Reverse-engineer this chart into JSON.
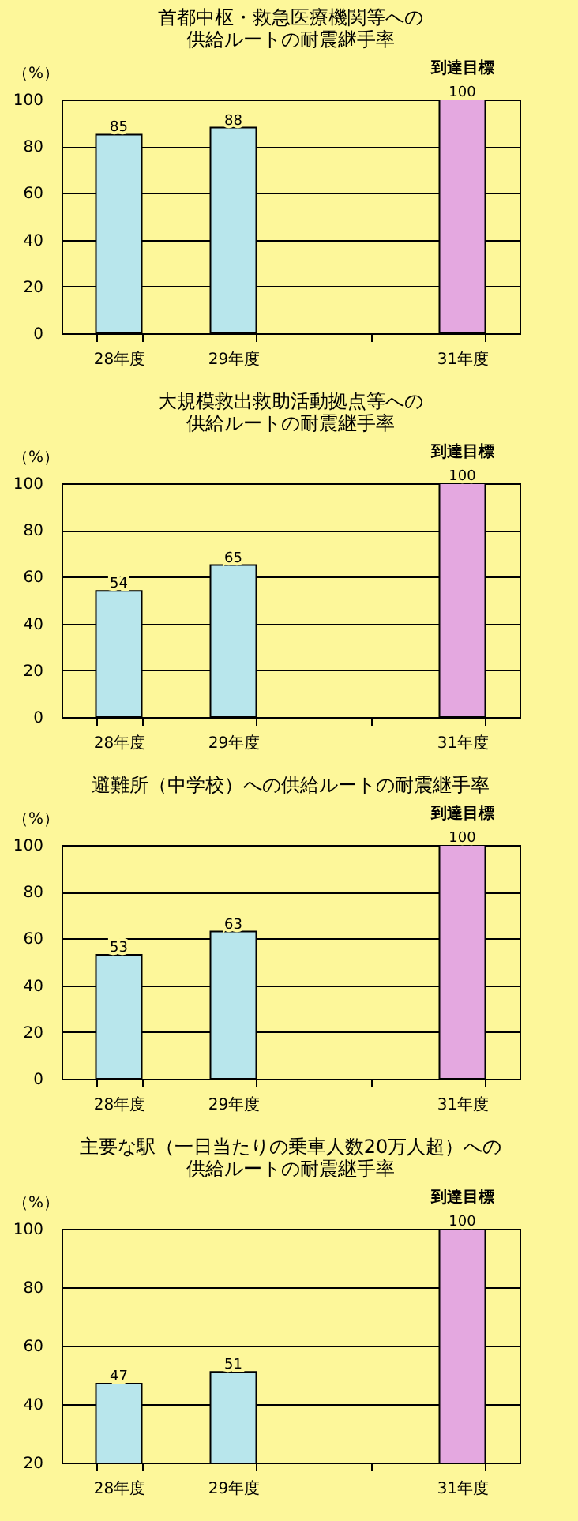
{
  "chart_data": [
    {
      "type": "bar",
      "title": "首都中枢・救急医療機関等への",
      "subtitle": "供給ルートの耐震継手率",
      "ylabel": "（%）",
      "categories": [
        "28年度",
        "29年度",
        null,
        "31年度"
      ],
      "values": [
        85,
        88,
        null,
        100
      ],
      "colors": [
        "#b8e6ec",
        "#b8e6ec",
        "#b8e6ec",
        "#e4a8e0"
      ],
      "ylim": [
        0,
        100
      ],
      "yticks": [
        0,
        20,
        40,
        60,
        80,
        100
      ],
      "grid": "y",
      "data_labels": true,
      "annotations": [
        {
          "text": "到達目標",
          "x": "31年度",
          "y": 100
        }
      ]
    },
    {
      "type": "bar",
      "title": "大規模救出救助活動拠点等への",
      "subtitle": "供給ルートの耐震継手率",
      "ylabel": "（%）",
      "categories": [
        "28年度",
        "29年度",
        null,
        "31年度"
      ],
      "values": [
        54,
        65,
        null,
        100
      ],
      "colors": [
        "#b8e6ec",
        "#b8e6ec",
        "#b8e6ec",
        "#e4a8e0"
      ],
      "ylim": [
        0,
        100
      ],
      "yticks": [
        0,
        20,
        40,
        60,
        80,
        100
      ],
      "grid": "y",
      "data_labels": true,
      "annotations": [
        {
          "text": "到達目標",
          "x": "31年度",
          "y": 100
        }
      ]
    },
    {
      "type": "bar",
      "title": "避難所（中学校）への供給ルートの耐震継手率",
      "ylabel": "（%）",
      "categories": [
        "28年度",
        "29年度",
        null,
        "31年度"
      ],
      "values": [
        53,
        63,
        null,
        100
      ],
      "colors": [
        "#b8e6ec",
        "#b8e6ec",
        "#b8e6ec",
        "#e4a8e0"
      ],
      "ylim": [
        0,
        100
      ],
      "yticks": [
        0,
        20,
        40,
        60,
        80,
        100
      ],
      "grid": "y",
      "data_labels": true,
      "annotations": [
        {
          "text": "到達目標",
          "x": "31年度",
          "y": 100
        }
      ]
    },
    {
      "type": "bar",
      "title": "主要な駅（一日当たりの乗車人数20万人超）への",
      "subtitle": "供給ルートの耐震継手率",
      "ylabel": "（%）",
      "categories": [
        "28年度",
        "29年度",
        null,
        "31年度"
      ],
      "values": [
        47,
        51,
        null,
        100
      ],
      "colors": [
        "#b8e6ec",
        "#b8e6ec",
        "#b8e6ec",
        "#e4a8e0"
      ],
      "ylim": [
        20,
        100
      ],
      "yticks": [
        20,
        40,
        60,
        80,
        100
      ],
      "grid": "y",
      "data_labels": true,
      "annotations": [
        {
          "text": "到達目標",
          "x": "31年度",
          "y": 100
        }
      ]
    }
  ]
}
